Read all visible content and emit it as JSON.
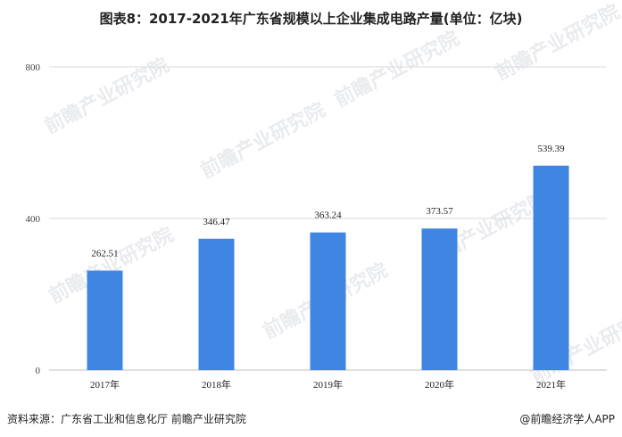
{
  "title": "图表8：2017-2021年广东省规模以上企业集成电路产量(单位：亿块)",
  "watermark": "前瞻产业研究院",
  "source": "资料来源：广东省工业和信息化厅 前瞻产业研究院",
  "brand": "@前瞻经济学人APP",
  "colors": {
    "bar": "#3f86e3",
    "grid": "#d9d9d9",
    "axis": "#bfbfbf"
  },
  "chart_data": {
    "type": "bar",
    "title": "图表8：2017-2021年广东省规模以上企业集成电路产量(单位：亿块)",
    "categories": [
      "2017年",
      "2018年",
      "2019年",
      "2020年",
      "2021年"
    ],
    "values": [
      262.51,
      346.47,
      363.24,
      373.57,
      539.39
    ],
    "value_labels": [
      "262.51",
      "346.47",
      "363.24",
      "373.57",
      "539.39"
    ],
    "y_ticks": [
      "0",
      "400",
      "800"
    ],
    "ylim": [
      0,
      800
    ],
    "grid": true,
    "xlabel": "",
    "ylabel": ""
  }
}
